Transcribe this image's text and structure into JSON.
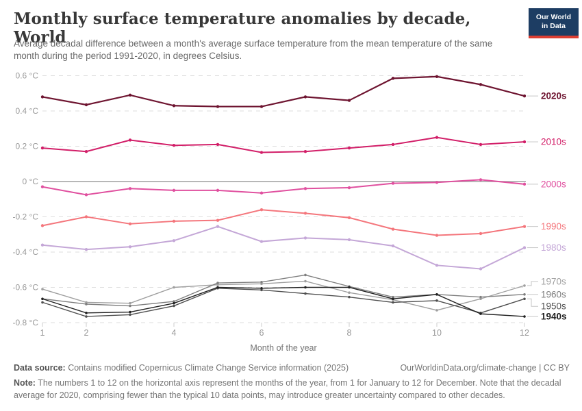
{
  "header": {
    "title": "Monthly surface temperature anomalies by decade, World",
    "subtitle": "Average decadal difference between a month's average surface temperature from the mean temperature of the same month during the period 1991-2020, in degrees Celsius.",
    "logo": {
      "line1": "Our World",
      "line2": "in Data",
      "bg_color": "#1d3d63",
      "accent_color": "#dc3e32"
    }
  },
  "chart_data": {
    "type": "line",
    "title": "Monthly surface temperature anomalies by decade, World",
    "xlabel": "Month of the year",
    "ylabel": "",
    "x": [
      1,
      2,
      3,
      4,
      5,
      6,
      7,
      8,
      9,
      10,
      11,
      12
    ],
    "x_ticks_shown": [
      1,
      2,
      4,
      6,
      8,
      10,
      12
    ],
    "xlim": [
      1,
      12
    ],
    "ylim": [
      -0.8,
      0.6
    ],
    "grid": "horizontal-dashed",
    "zero_line": true,
    "legend_position": "right-end-labels",
    "y_ticks": [
      {
        "value": 0.6,
        "label": "0.6 °C"
      },
      {
        "value": 0.4,
        "label": "0.4 °C"
      },
      {
        "value": 0.2,
        "label": "0.2 °C"
      },
      {
        "value": 0,
        "label": "0 °C"
      },
      {
        "value": -0.2,
        "label": "-0.2 °C"
      },
      {
        "value": -0.4,
        "label": "-0.4 °C"
      },
      {
        "value": -0.6,
        "label": "-0.6 °C"
      },
      {
        "value": -0.8,
        "label": "-0.8 °C"
      }
    ],
    "series": [
      {
        "name": "2020s",
        "color": "#6e1430",
        "emphasis": true,
        "values": [
          0.48,
          0.435,
          0.49,
          0.43,
          0.425,
          0.425,
          0.48,
          0.46,
          0.585,
          0.595,
          0.55,
          0.485
        ]
      },
      {
        "name": "2010s",
        "color": "#d21e68",
        "emphasis": false,
        "values": [
          0.19,
          0.17,
          0.235,
          0.205,
          0.21,
          0.165,
          0.17,
          0.19,
          0.21,
          0.25,
          0.21,
          0.225
        ]
      },
      {
        "name": "2000s",
        "color": "#e0509f",
        "emphasis": false,
        "values": [
          -0.03,
          -0.075,
          -0.04,
          -0.05,
          -0.05,
          -0.065,
          -0.04,
          -0.035,
          -0.01,
          -0.005,
          0.01,
          -0.015
        ]
      },
      {
        "name": "1990s",
        "color": "#f4767c",
        "emphasis": false,
        "values": [
          -0.25,
          -0.2,
          -0.24,
          -0.225,
          -0.22,
          -0.16,
          -0.18,
          -0.205,
          -0.27,
          -0.305,
          -0.295,
          -0.255
        ]
      },
      {
        "name": "1980s",
        "color": "#c4a7d7",
        "emphasis": false,
        "values": [
          -0.36,
          -0.385,
          -0.37,
          -0.335,
          -0.255,
          -0.34,
          -0.32,
          -0.33,
          -0.365,
          -0.475,
          -0.495,
          -0.375
        ]
      },
      {
        "name": "1970s",
        "color": "#9f9f9f",
        "emphasis": false,
        "values": [
          -0.61,
          -0.685,
          -0.69,
          -0.6,
          -0.585,
          -0.58,
          -0.565,
          -0.63,
          -0.67,
          -0.73,
          -0.665,
          -0.59
        ]
      },
      {
        "name": "1960s",
        "color": "#7e7e7e",
        "emphasis": false,
        "values": [
          -0.665,
          -0.695,
          -0.705,
          -0.68,
          -0.575,
          -0.57,
          -0.53,
          -0.595,
          -0.655,
          -0.64,
          -0.655,
          -0.64
        ]
      },
      {
        "name": "1950s",
        "color": "#4f4f4f",
        "emphasis": false,
        "values": [
          -0.685,
          -0.765,
          -0.755,
          -0.705,
          -0.605,
          -0.615,
          -0.635,
          -0.655,
          -0.685,
          -0.675,
          -0.745,
          -0.665
        ]
      },
      {
        "name": "1940s",
        "color": "#212121",
        "emphasis": true,
        "values": [
          -0.665,
          -0.745,
          -0.74,
          -0.69,
          -0.6,
          -0.605,
          -0.6,
          -0.6,
          -0.665,
          -0.64,
          -0.75,
          -0.765
        ]
      }
    ]
  },
  "footer": {
    "source_label": "Data source:",
    "source_text": " Contains modified Copernicus Climate Change Service information (2025)",
    "attribution": "OurWorldinData.org/climate-change | CC BY",
    "note_label": "Note:",
    "note_text": " The numbers 1 to 12 on the horizontal axis represent the months of the year, from 1 for January to 12 for December. Note that the decadal average for 2020, comprising fewer than the typical 10 data points, may introduce greater uncertainty compared to other decades."
  }
}
